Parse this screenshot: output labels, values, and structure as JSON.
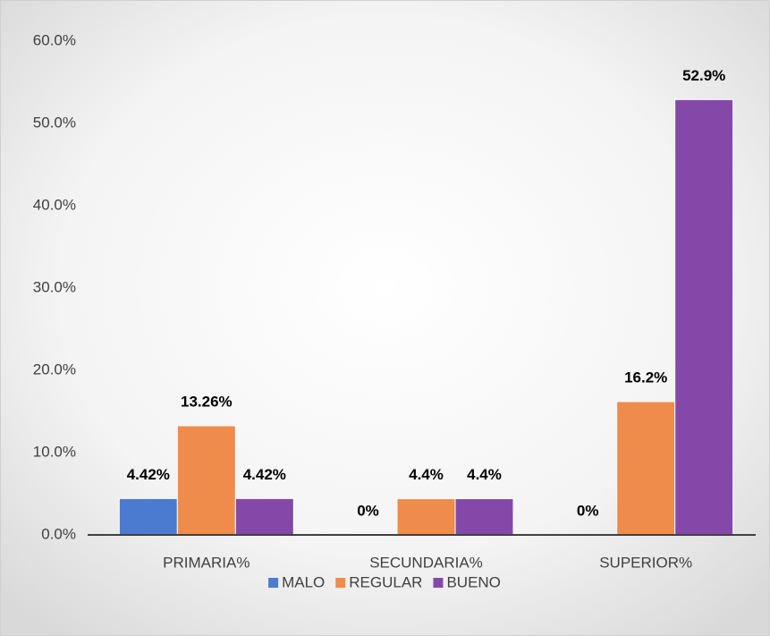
{
  "chart_data": {
    "type": "bar",
    "categories": [
      "PRIMARIA%",
      "SECUNDARIA%",
      "SUPERIOR%"
    ],
    "series": [
      {
        "name": "MALO",
        "color": "#4a7bd0",
        "values": [
          4.42,
          0,
          0
        ],
        "value_labels": [
          "4.42%",
          "0%",
          "0%"
        ]
      },
      {
        "name": "REGULAR",
        "color": "#ef8b4b",
        "values": [
          13.26,
          4.4,
          16.2
        ],
        "value_labels": [
          "13.26%",
          "4.4%",
          "16.2%"
        ]
      },
      {
        "name": "BUENO",
        "color": "#8449a8",
        "values": [
          4.42,
          4.4,
          52.9
        ],
        "value_labels": [
          "4.42%",
          "4.4%",
          "52.9%"
        ]
      }
    ],
    "ylim": [
      0,
      60
    ],
    "yticks": [
      {
        "value": 0,
        "label": "0.0%"
      },
      {
        "value": 10,
        "label": "10.0%"
      },
      {
        "value": 20,
        "label": "20.0%"
      },
      {
        "value": 30,
        "label": "30.0%"
      },
      {
        "value": 40,
        "label": "40.0%"
      },
      {
        "value": 50,
        "label": "50.0%"
      },
      {
        "value": 60,
        "label": "60.0%"
      }
    ],
    "grid": false,
    "legend": "bottom"
  }
}
